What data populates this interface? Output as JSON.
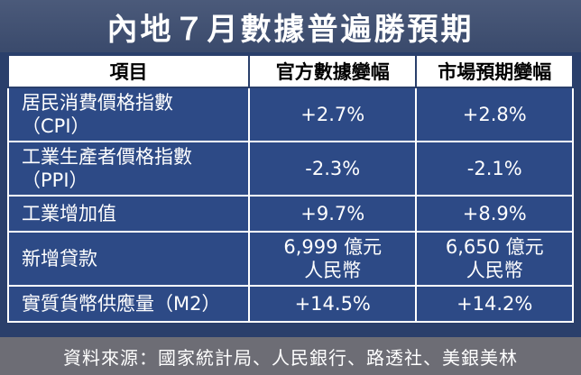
{
  "title": "內地７月數據普遍勝預期",
  "headers": {
    "item": "項目",
    "official": "官方數據變幅",
    "market": "市場預期變幅"
  },
  "rows": [
    {
      "item_line1": "居民消費價格指數",
      "item_line2": "（CPI）",
      "official": "+2.7%",
      "market": "+2.8%"
    },
    {
      "item_line1": "工業生產者價格指數",
      "item_line2": "（PPI）",
      "official": "-2.3%",
      "market": "-2.1%"
    },
    {
      "item_line1": "工業增加值",
      "official": "+9.7%",
      "market": "+8.9%"
    },
    {
      "item_line1": "新增貸款",
      "official_line1": "6,999 億元",
      "official_line2": "人民幣",
      "market_line1": "6,650 億元",
      "market_line2": "人民幣"
    },
    {
      "item_line1": "實質貨幣供應量（M2）",
      "official": "+14.5%",
      "market": "+14.2%"
    }
  ],
  "source": "資料來源：國家統計局、人民銀行、路透社、美銀美林",
  "colors": {
    "background": "#2a3f6b",
    "cell": "#2d4a86",
    "header_bg": "#ffffff",
    "footer_bg": "#6d6d75"
  }
}
